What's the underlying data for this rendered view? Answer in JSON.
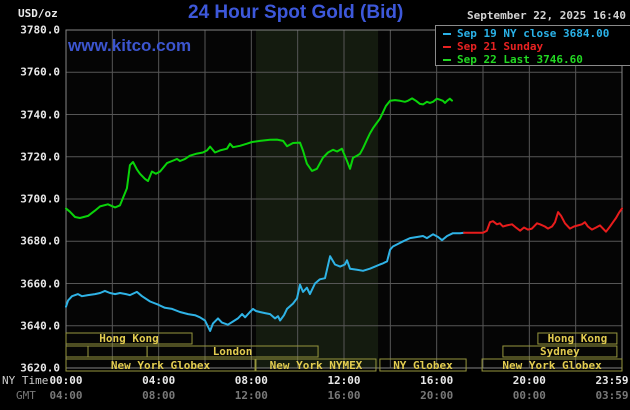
{
  "header": {
    "unit_label": "USD/oz",
    "title": "24 Hour Spot Gold (Bid)",
    "datetime": "September 22, 2025 16:40",
    "watermark": "www.kitco.com"
  },
  "legend": {
    "items": [
      {
        "label": "Sep 19 NY close 3684.00",
        "color": "#2ab2e8"
      },
      {
        "label": "Sep 21 Sunday",
        "color": "#e82222"
      },
      {
        "label": "Sep 22 Last 3746.60",
        "color": "#22d822"
      }
    ]
  },
  "axes": {
    "y_ticks": [
      "3780.0",
      "3760.0",
      "3740.0",
      "3720.0",
      "3700.0",
      "3680.0",
      "3660.0",
      "3640.0",
      "3620.0"
    ],
    "y_values": [
      3780,
      3760,
      3740,
      3720,
      3700,
      3680,
      3660,
      3640,
      3620
    ],
    "x_row1_label": "NY Time",
    "x_row2_label": "GMT",
    "x_row1_ticks": [
      "00:00",
      "04:00",
      "08:00",
      "12:00",
      "16:00",
      "20:00",
      "23:59"
    ],
    "x_row2_ticks": [
      "04:00",
      "08:00",
      "12:00",
      "16:00",
      "20:00",
      "00:00",
      "03:59"
    ],
    "x_tick_hours": [
      0,
      4,
      8,
      12,
      16,
      20,
      23.98
    ]
  },
  "sessions": [
    {
      "row": 1,
      "start": 0,
      "end": 5.44,
      "label": "Hong Kong"
    },
    {
      "row": 1,
      "start": 20.37,
      "end": 23.78,
      "label": "Hong Kong"
    },
    {
      "row": 2,
      "start": 0,
      "end": 0.95,
      "label": ""
    },
    {
      "row": 2,
      "start": 0.95,
      "end": 3.5,
      "label": ""
    },
    {
      "row": 2,
      "start": 3.5,
      "end": 10.88,
      "label": "London"
    },
    {
      "row": 2,
      "start": 18.86,
      "end": 23.78,
      "label": "Sydney"
    },
    {
      "row": 3,
      "start": 0,
      "end": 8.16,
      "label": "New York Globex"
    },
    {
      "row": 3,
      "start": 8.2,
      "end": 13.38,
      "label": "New York NYMEX"
    },
    {
      "row": 3,
      "start": 13.55,
      "end": 17.27,
      "label": "NY Globex"
    },
    {
      "row": 3,
      "start": 17.96,
      "end": 24,
      "label": "New York Globex"
    }
  ],
  "chart_data": {
    "type": "line",
    "title": "24 Hour Spot Gold (Bid)",
    "xlabel": "NY Time (hours)",
    "ylabel": "USD/oz",
    "xlim": [
      0,
      24
    ],
    "ylim": [
      3620,
      3780
    ],
    "grid": {
      "x_step_hours": 2,
      "y_step": 20,
      "color": "#565656"
    },
    "highlight_band_hours": [
      8.2,
      13.47
    ],
    "highlight_band_color": "#141b0f",
    "legend_position": "top-right",
    "series": [
      {
        "name": "Sep 22 Last 3746.60",
        "color": "#0ad40a",
        "points": [
          [
            0,
            3695.5
          ],
          [
            0.17,
            3694
          ],
          [
            0.39,
            3691.5
          ],
          [
            0.6,
            3691
          ],
          [
            0.95,
            3692
          ],
          [
            1.25,
            3694.5
          ],
          [
            1.47,
            3696.5
          ],
          [
            1.81,
            3697.5
          ],
          [
            2.12,
            3696
          ],
          [
            2.33,
            3697
          ],
          [
            2.46,
            3700.5
          ],
          [
            2.63,
            3705
          ],
          [
            2.76,
            3716
          ],
          [
            2.89,
            3717.5
          ],
          [
            3.06,
            3714
          ],
          [
            3.19,
            3712
          ],
          [
            3.41,
            3709.5
          ],
          [
            3.54,
            3708.5
          ],
          [
            3.71,
            3713
          ],
          [
            3.88,
            3712
          ],
          [
            4.06,
            3713
          ],
          [
            4.36,
            3717
          ],
          [
            4.58,
            3718
          ],
          [
            4.79,
            3719
          ],
          [
            4.92,
            3718
          ],
          [
            5.14,
            3719
          ],
          [
            5.35,
            3720.5
          ],
          [
            5.65,
            3721.5
          ],
          [
            5.91,
            3722
          ],
          [
            6.09,
            3723
          ],
          [
            6.22,
            3724.8
          ],
          [
            6.43,
            3722
          ],
          [
            6.65,
            3723
          ],
          [
            6.95,
            3723.8
          ],
          [
            7.08,
            3726.2
          ],
          [
            7.21,
            3724.5
          ],
          [
            7.51,
            3725.2
          ],
          [
            7.81,
            3726.2
          ],
          [
            8.03,
            3727
          ],
          [
            8.37,
            3727.5
          ],
          [
            8.81,
            3728
          ],
          [
            9.11,
            3728.1
          ],
          [
            9.37,
            3727.5
          ],
          [
            9.54,
            3725
          ],
          [
            9.8,
            3726.5
          ],
          [
            10.1,
            3726.7
          ],
          [
            10.23,
            3722.9
          ],
          [
            10.4,
            3716.7
          ],
          [
            10.62,
            3713.3
          ],
          [
            10.83,
            3714.3
          ],
          [
            11.09,
            3719.5
          ],
          [
            11.31,
            3722
          ],
          [
            11.53,
            3723.3
          ],
          [
            11.7,
            3722.5
          ],
          [
            11.91,
            3723.8
          ],
          [
            12.13,
            3718
          ],
          [
            12.26,
            3714.3
          ],
          [
            12.39,
            3719.5
          ],
          [
            12.56,
            3720.5
          ],
          [
            12.69,
            3721.4
          ],
          [
            12.82,
            3724
          ],
          [
            12.99,
            3728
          ],
          [
            13.12,
            3731
          ],
          [
            13.25,
            3733.5
          ],
          [
            13.38,
            3735.5
          ],
          [
            13.55,
            3738
          ],
          [
            13.68,
            3741
          ],
          [
            13.81,
            3744
          ],
          [
            13.99,
            3746.5
          ],
          [
            14.2,
            3746.8
          ],
          [
            14.42,
            3746.5
          ],
          [
            14.63,
            3746
          ],
          [
            14.76,
            3746.5
          ],
          [
            14.94,
            3747.6
          ],
          [
            15.11,
            3746.5
          ],
          [
            15.28,
            3745
          ],
          [
            15.41,
            3744.8
          ],
          [
            15.58,
            3746
          ],
          [
            15.71,
            3745.5
          ],
          [
            15.84,
            3746
          ],
          [
            16.01,
            3747.5
          ],
          [
            16.14,
            3747
          ],
          [
            16.27,
            3746.5
          ],
          [
            16.36,
            3745.5
          ],
          [
            16.45,
            3746.5
          ],
          [
            16.57,
            3747.5
          ],
          [
            16.66,
            3746.6
          ]
        ]
      },
      {
        "name": "Sep 19 NY close 3684.00",
        "color": "#2fb3e6",
        "points": [
          [
            0,
            3649
          ],
          [
            0.09,
            3652
          ],
          [
            0.26,
            3654
          ],
          [
            0.52,
            3655
          ],
          [
            0.69,
            3654
          ],
          [
            0.95,
            3654.5
          ],
          [
            1.25,
            3655
          ],
          [
            1.47,
            3655.5
          ],
          [
            1.68,
            3656.5
          ],
          [
            1.9,
            3655.5
          ],
          [
            2.12,
            3655
          ],
          [
            2.33,
            3655.5
          ],
          [
            2.59,
            3655
          ],
          [
            2.76,
            3654.5
          ],
          [
            3.06,
            3656
          ],
          [
            3.28,
            3654
          ],
          [
            3.63,
            3651.5
          ],
          [
            3.97,
            3650
          ],
          [
            4.27,
            3648.5
          ],
          [
            4.58,
            3648
          ],
          [
            4.92,
            3646.5
          ],
          [
            5.27,
            3645.5
          ],
          [
            5.57,
            3645
          ],
          [
            5.78,
            3644
          ],
          [
            6,
            3642.5
          ],
          [
            6.22,
            3637.5
          ],
          [
            6.34,
            3641
          ],
          [
            6.56,
            3643.5
          ],
          [
            6.73,
            3641.5
          ],
          [
            6.99,
            3640.5
          ],
          [
            7.21,
            3642
          ],
          [
            7.42,
            3643.5
          ],
          [
            7.6,
            3645.5
          ],
          [
            7.73,
            3644
          ],
          [
            7.94,
            3646.5
          ],
          [
            8.07,
            3648
          ],
          [
            8.2,
            3647
          ],
          [
            8.37,
            3646.5
          ],
          [
            8.59,
            3646
          ],
          [
            8.81,
            3645.5
          ],
          [
            9.02,
            3643.5
          ],
          [
            9.15,
            3644.5
          ],
          [
            9.24,
            3642.5
          ],
          [
            9.41,
            3645
          ],
          [
            9.54,
            3648
          ],
          [
            9.8,
            3650.5
          ],
          [
            9.97,
            3653
          ],
          [
            10.1,
            3659.5
          ],
          [
            10.23,
            3656
          ],
          [
            10.4,
            3658
          ],
          [
            10.53,
            3655
          ],
          [
            10.75,
            3660
          ],
          [
            10.96,
            3662
          ],
          [
            11.18,
            3662.5
          ],
          [
            11.4,
            3672.9
          ],
          [
            11.61,
            3669
          ],
          [
            11.83,
            3668
          ],
          [
            12.04,
            3669
          ],
          [
            12.13,
            3671
          ],
          [
            12.26,
            3667
          ],
          [
            12.56,
            3666.5
          ],
          [
            12.82,
            3666
          ],
          [
            13.12,
            3667
          ],
          [
            13.34,
            3668
          ],
          [
            13.55,
            3669
          ],
          [
            13.68,
            3669.5
          ],
          [
            13.86,
            3670.5
          ],
          [
            13.99,
            3676
          ],
          [
            14.11,
            3677.5
          ],
          [
            14.29,
            3678.5
          ],
          [
            14.55,
            3680
          ],
          [
            14.85,
            3681.5
          ],
          [
            15.15,
            3682
          ],
          [
            15.41,
            3682.5
          ],
          [
            15.58,
            3681.5
          ],
          [
            15.84,
            3683.3
          ],
          [
            16.06,
            3682
          ],
          [
            16.23,
            3680.5
          ],
          [
            16.45,
            3682.5
          ],
          [
            16.7,
            3683.8
          ],
          [
            17.01,
            3683.8
          ],
          [
            17.18,
            3684
          ]
        ]
      },
      {
        "name": "Sep 21 Sunday",
        "color": "#e81c1c",
        "points": [
          [
            17.18,
            3684
          ],
          [
            18,
            3684
          ],
          [
            18.17,
            3685
          ],
          [
            18.3,
            3689
          ],
          [
            18.43,
            3689.5
          ],
          [
            18.6,
            3688
          ],
          [
            18.73,
            3688.5
          ],
          [
            18.86,
            3687
          ],
          [
            19.03,
            3687.5
          ],
          [
            19.25,
            3688
          ],
          [
            19.42,
            3686.5
          ],
          [
            19.6,
            3685
          ],
          [
            19.77,
            3686.5
          ],
          [
            19.94,
            3685.5
          ],
          [
            20.11,
            3686
          ],
          [
            20.33,
            3688.5
          ],
          [
            20.46,
            3688
          ],
          [
            20.67,
            3687
          ],
          [
            20.8,
            3686
          ],
          [
            20.98,
            3687
          ],
          [
            21.11,
            3689
          ],
          [
            21.24,
            3693.8
          ],
          [
            21.37,
            3692
          ],
          [
            21.54,
            3688.5
          ],
          [
            21.75,
            3686
          ],
          [
            21.93,
            3687
          ],
          [
            22.1,
            3687.5
          ],
          [
            22.27,
            3688
          ],
          [
            22.4,
            3689
          ],
          [
            22.53,
            3687
          ],
          [
            22.7,
            3685.5
          ],
          [
            22.88,
            3686.5
          ],
          [
            23.05,
            3687.5
          ],
          [
            23.18,
            3686
          ],
          [
            23.31,
            3684.5
          ],
          [
            23.48,
            3687
          ],
          [
            23.61,
            3689
          ],
          [
            23.74,
            3691
          ],
          [
            23.87,
            3693.5
          ],
          [
            24,
            3695.5
          ]
        ]
      }
    ],
    "session_style": {
      "border_color": "#96963e",
      "text_color": "#e2cc50"
    }
  }
}
